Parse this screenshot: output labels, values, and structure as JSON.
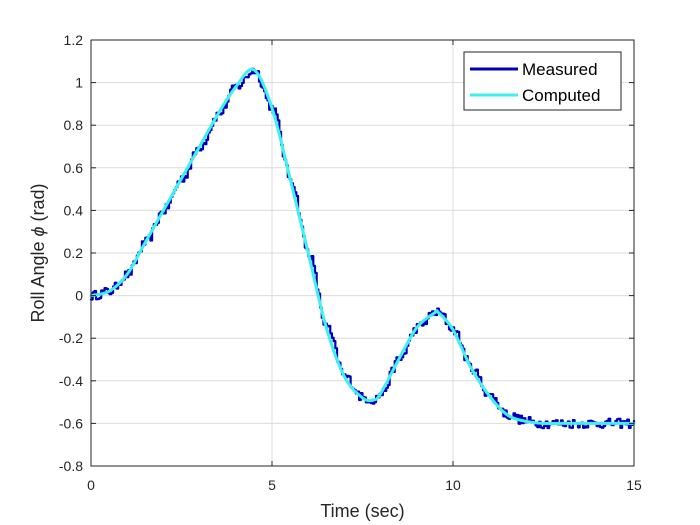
{
  "chart_data": {
    "type": "line",
    "title": "",
    "xlabel": "Time (sec)",
    "ylabel_prefix": "Roll Angle ",
    "ylabel_symbol": "ϕ",
    "ylabel_suffix": " (rad)",
    "xlim": [
      0,
      15
    ],
    "ylim": [
      -0.8,
      1.2
    ],
    "x_ticks": [
      0,
      5,
      10,
      15
    ],
    "x_tick_labels": [
      "0",
      "5",
      "10",
      "15"
    ],
    "y_ticks": [
      -0.8,
      -0.6,
      -0.4,
      -0.2,
      0,
      0.2,
      0.4,
      0.6,
      0.8,
      1,
      1.2
    ],
    "y_tick_labels": [
      "-0.8",
      "-0.6",
      "-0.4",
      "-0.2",
      "0",
      "0.2",
      "0.4",
      "0.6",
      "0.8",
      "1",
      "1.2"
    ],
    "grid": true,
    "legend_position": "top-right",
    "series": [
      {
        "name": "Measured",
        "color": "#0000b8",
        "style": "noisy-step",
        "x": [
          0,
          0.5,
          1,
          1.5,
          2,
          2.5,
          3,
          3.5,
          4,
          4.5,
          5,
          5.5,
          6,
          6.5,
          7,
          7.5,
          7.8,
          8,
          8.5,
          9,
          9.5,
          9.6,
          10,
          10.5,
          11,
          11.5,
          12,
          12.5,
          13,
          13.5,
          14,
          14.5,
          15
        ],
        "y": [
          0,
          0.02,
          0.1,
          0.25,
          0.4,
          0.55,
          0.7,
          0.85,
          0.98,
          1.06,
          0.88,
          0.55,
          0.2,
          -0.15,
          -0.38,
          -0.48,
          -0.49,
          -0.46,
          -0.3,
          -0.15,
          -0.08,
          -0.08,
          -0.16,
          -0.34,
          -0.47,
          -0.56,
          -0.59,
          -0.6,
          -0.6,
          -0.6,
          -0.6,
          -0.6,
          -0.6
        ]
      },
      {
        "name": "Computed",
        "color": "#3ff0f0",
        "style": "smooth",
        "x": [
          0,
          0.5,
          1,
          1.5,
          2,
          2.5,
          3,
          3.5,
          4,
          4.5,
          5,
          5.5,
          6,
          6.5,
          7,
          7.5,
          7.8,
          8,
          8.5,
          9,
          9.5,
          9.6,
          10,
          10.5,
          11,
          11.5,
          12,
          12.5,
          13,
          13.5,
          14,
          14.5,
          15
        ],
        "y": [
          0,
          0.02,
          0.1,
          0.25,
          0.4,
          0.55,
          0.7,
          0.85,
          0.98,
          1.06,
          0.88,
          0.55,
          0.2,
          -0.15,
          -0.38,
          -0.48,
          -0.49,
          -0.46,
          -0.3,
          -0.15,
          -0.08,
          -0.08,
          -0.16,
          -0.34,
          -0.47,
          -0.56,
          -0.59,
          -0.6,
          -0.6,
          -0.6,
          -0.6,
          -0.6,
          -0.6
        ]
      }
    ]
  }
}
